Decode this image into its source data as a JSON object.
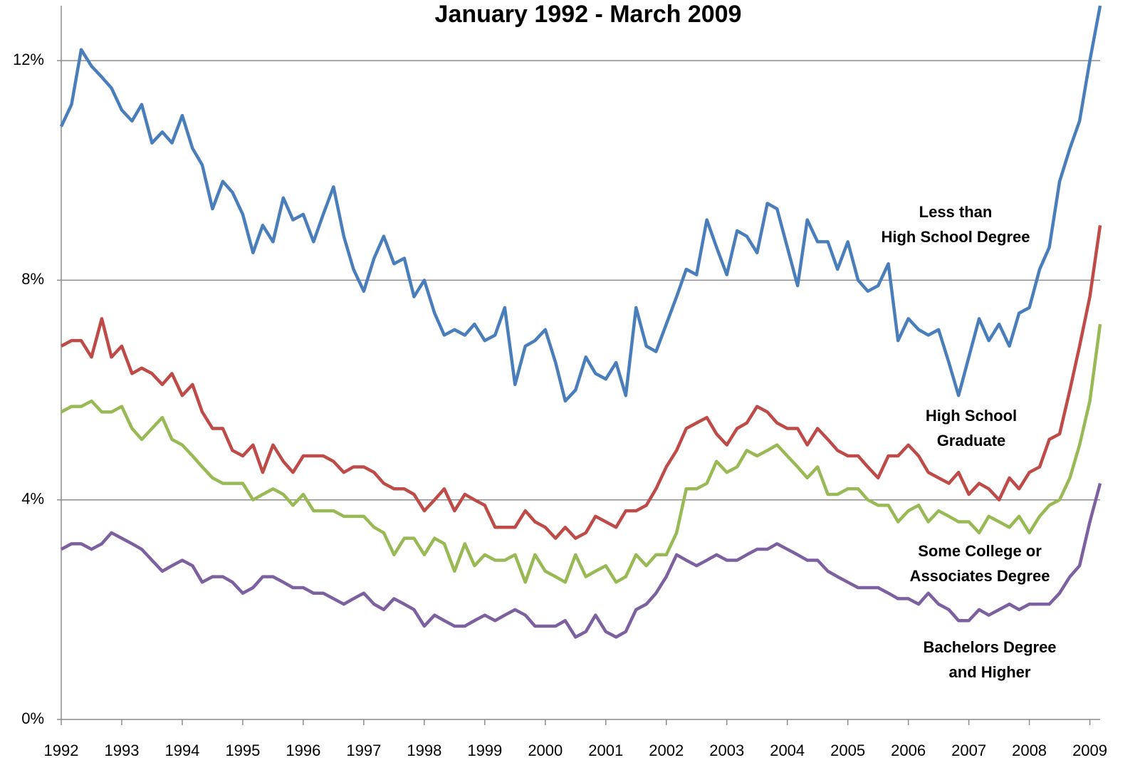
{
  "chart_data": {
    "type": "line",
    "title": "January 1992 - March 2009",
    "x": [
      1992.0,
      1992.17,
      1992.33,
      1992.5,
      1992.67,
      1992.83,
      1993.0,
      1993.17,
      1993.33,
      1993.5,
      1993.67,
      1993.83,
      1994.0,
      1994.17,
      1994.33,
      1994.5,
      1994.67,
      1994.83,
      1995.0,
      1995.17,
      1995.33,
      1995.5,
      1995.67,
      1995.83,
      1996.0,
      1996.17,
      1996.33,
      1996.5,
      1996.67,
      1996.83,
      1997.0,
      1997.17,
      1997.33,
      1997.5,
      1997.67,
      1997.83,
      1998.0,
      1998.17,
      1998.33,
      1998.5,
      1998.67,
      1998.83,
      1999.0,
      1999.17,
      1999.33,
      1999.5,
      1999.67,
      1999.83,
      2000.0,
      2000.17,
      2000.33,
      2000.5,
      2000.67,
      2000.83,
      2001.0,
      2001.17,
      2001.33,
      2001.5,
      2001.67,
      2001.83,
      2002.0,
      2002.17,
      2002.33,
      2002.5,
      2002.67,
      2002.83,
      2003.0,
      2003.17,
      2003.33,
      2003.5,
      2003.67,
      2003.83,
      2004.0,
      2004.17,
      2004.33,
      2004.5,
      2004.67,
      2004.83,
      2005.0,
      2005.17,
      2005.33,
      2005.5,
      2005.67,
      2005.83,
      2006.0,
      2006.17,
      2006.33,
      2006.5,
      2006.67,
      2006.83,
      2007.0,
      2007.17,
      2007.33,
      2007.5,
      2007.67,
      2007.83,
      2008.0,
      2008.17,
      2008.33,
      2008.5,
      2008.67,
      2008.83,
      2009.0,
      2009.17
    ],
    "series": [
      {
        "name": "Less than\nHigh School Degree",
        "color": "#4a7ebb",
        "values": [
          10.8,
          11.2,
          12.2,
          11.9,
          11.7,
          11.5,
          11.1,
          10.9,
          11.2,
          10.5,
          10.7,
          10.5,
          11.0,
          10.4,
          10.1,
          9.3,
          9.8,
          9.6,
          9.2,
          8.5,
          9.0,
          8.7,
          9.5,
          9.1,
          9.2,
          8.7,
          9.2,
          9.7,
          8.8,
          8.2,
          7.8,
          8.4,
          8.8,
          8.3,
          8.4,
          7.7,
          8.0,
          7.4,
          7.0,
          7.1,
          7.0,
          7.2,
          6.9,
          7.0,
          7.5,
          6.1,
          6.8,
          6.9,
          7.1,
          6.5,
          5.8,
          6.0,
          6.6,
          6.3,
          6.2,
          6.5,
          5.9,
          7.5,
          6.8,
          6.7,
          7.2,
          7.7,
          8.2,
          8.1,
          9.1,
          8.6,
          8.1,
          8.9,
          8.8,
          8.5,
          9.4,
          9.3,
          8.6,
          7.9,
          9.1,
          8.7,
          8.7,
          8.2,
          8.7,
          8.0,
          7.8,
          7.9,
          8.3,
          6.9,
          7.3,
          7.1,
          7.0,
          7.1,
          6.5,
          5.9,
          6.6,
          7.3,
          6.9,
          7.2,
          6.8,
          7.4,
          7.5,
          8.2,
          8.6,
          9.8,
          10.4,
          10.9,
          12.0,
          13.0
        ]
      },
      {
        "name": "High School\nGraduate",
        "color": "#be4b48",
        "values": [
          6.8,
          6.9,
          6.9,
          6.6,
          7.3,
          6.6,
          6.8,
          6.3,
          6.4,
          6.3,
          6.1,
          6.3,
          5.9,
          6.1,
          5.6,
          5.3,
          5.3,
          4.9,
          4.8,
          5.0,
          4.5,
          5.0,
          4.7,
          4.5,
          4.8,
          4.8,
          4.8,
          4.7,
          4.5,
          4.6,
          4.6,
          4.5,
          4.3,
          4.2,
          4.2,
          4.1,
          3.8,
          4.0,
          4.2,
          3.8,
          4.1,
          4.0,
          3.9,
          3.5,
          3.5,
          3.5,
          3.8,
          3.6,
          3.5,
          3.3,
          3.5,
          3.3,
          3.4,
          3.7,
          3.6,
          3.5,
          3.8,
          3.8,
          3.9,
          4.2,
          4.6,
          4.9,
          5.3,
          5.4,
          5.5,
          5.2,
          5.0,
          5.3,
          5.4,
          5.7,
          5.6,
          5.4,
          5.3,
          5.3,
          5.0,
          5.3,
          5.1,
          4.9,
          4.8,
          4.8,
          4.6,
          4.4,
          4.8,
          4.8,
          5.0,
          4.8,
          4.5,
          4.4,
          4.3,
          4.5,
          4.1,
          4.3,
          4.2,
          4.0,
          4.4,
          4.2,
          4.5,
          4.6,
          5.1,
          5.2,
          6.0,
          6.8,
          7.7,
          9.0
        ]
      },
      {
        "name": "Some College or\nAssociates Degree",
        "color": "#98b954",
        "values": [
          5.6,
          5.7,
          5.7,
          5.8,
          5.6,
          5.6,
          5.7,
          5.3,
          5.1,
          5.3,
          5.5,
          5.1,
          5.0,
          4.8,
          4.6,
          4.4,
          4.3,
          4.3,
          4.3,
          4.0,
          4.1,
          4.2,
          4.1,
          3.9,
          4.1,
          3.8,
          3.8,
          3.8,
          3.7,
          3.7,
          3.7,
          3.5,
          3.4,
          3.0,
          3.3,
          3.3,
          3.0,
          3.3,
          3.2,
          2.7,
          3.2,
          2.8,
          3.0,
          2.9,
          2.9,
          3.0,
          2.5,
          3.0,
          2.7,
          2.6,
          2.5,
          3.0,
          2.6,
          2.7,
          2.8,
          2.5,
          2.6,
          3.0,
          2.8,
          3.0,
          3.0,
          3.4,
          4.2,
          4.2,
          4.3,
          4.7,
          4.5,
          4.6,
          4.9,
          4.8,
          4.9,
          5.0,
          4.8,
          4.6,
          4.4,
          4.6,
          4.1,
          4.1,
          4.2,
          4.2,
          4.0,
          3.9,
          3.9,
          3.6,
          3.8,
          3.9,
          3.6,
          3.8,
          3.7,
          3.6,
          3.6,
          3.4,
          3.7,
          3.6,
          3.5,
          3.7,
          3.4,
          3.7,
          3.9,
          4.0,
          4.4,
          5.0,
          5.8,
          7.2
        ]
      },
      {
        "name": "Bachelors Degree\nand Higher",
        "color": "#7d60a0",
        "values": [
          3.1,
          3.2,
          3.2,
          3.1,
          3.2,
          3.4,
          3.3,
          3.2,
          3.1,
          2.9,
          2.7,
          2.8,
          2.9,
          2.8,
          2.5,
          2.6,
          2.6,
          2.5,
          2.3,
          2.4,
          2.6,
          2.6,
          2.5,
          2.4,
          2.4,
          2.3,
          2.3,
          2.2,
          2.1,
          2.2,
          2.3,
          2.1,
          2.0,
          2.2,
          2.1,
          2.0,
          1.7,
          1.9,
          1.8,
          1.7,
          1.7,
          1.8,
          1.9,
          1.8,
          1.9,
          2.0,
          1.9,
          1.7,
          1.7,
          1.7,
          1.8,
          1.5,
          1.6,
          1.9,
          1.6,
          1.5,
          1.6,
          2.0,
          2.1,
          2.3,
          2.6,
          3.0,
          2.9,
          2.8,
          2.9,
          3.0,
          2.9,
          2.9,
          3.0,
          3.1,
          3.1,
          3.2,
          3.1,
          3.0,
          2.9,
          2.9,
          2.7,
          2.6,
          2.5,
          2.4,
          2.4,
          2.4,
          2.3,
          2.2,
          2.2,
          2.1,
          2.3,
          2.1,
          2.0,
          1.8,
          1.8,
          2.0,
          1.9,
          2.0,
          2.1,
          2.0,
          2.1,
          2.1,
          2.1,
          2.3,
          2.6,
          2.8,
          3.6,
          4.3
        ]
      }
    ],
    "xlim": [
      1992,
      2009.17
    ],
    "xticks": [
      1992,
      1993,
      1994,
      1995,
      1996,
      1997,
      1998,
      1999,
      2000,
      2001,
      2002,
      2003,
      2004,
      2005,
      2006,
      2007,
      2008,
      2009
    ],
    "ylim": [
      0,
      13
    ],
    "yticks": [
      {
        "value": 0,
        "label": "0%"
      },
      {
        "value": 4,
        "label": "4%"
      },
      {
        "value": 8,
        "label": "8%"
      },
      {
        "value": 12,
        "label": "12%"
      }
    ],
    "grid": true
  }
}
